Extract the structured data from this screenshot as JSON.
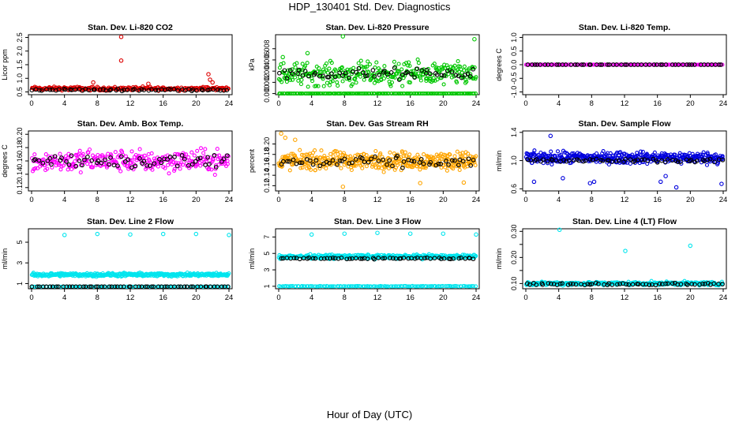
{
  "figure": {
    "title": "HDP_130401  Std. Dev. Diagnostics",
    "xlabel": "Hour of Day (UTC)"
  },
  "chart_data": [
    {
      "type": "scatter",
      "title": "Stan. Dev. Li-820 CO2",
      "ylabel": "Licor ppm",
      "xlim": [
        0,
        24
      ],
      "xticks": [
        0,
        4,
        8,
        12,
        16,
        20,
        24
      ],
      "ylim": [
        0.4,
        2.6
      ],
      "yticks": [
        0.5,
        1.0,
        1.5,
        2.0,
        2.5
      ],
      "yticklabels": [
        "0.5",
        "1.0",
        "1.5",
        "2.0",
        "2.5"
      ],
      "series": [
        {
          "name": "cloud",
          "color": "#dd0000",
          "base": 0.62,
          "spread": 0.1,
          "n": 260,
          "outliers": [
            [
              10.9,
              2.52
            ],
            [
              10.9,
              1.65
            ],
            [
              21.5,
              1.15
            ],
            [
              21.7,
              0.95
            ],
            [
              22.0,
              0.85
            ],
            [
              7.5,
              0.85
            ],
            [
              14.2,
              0.8
            ]
          ]
        },
        {
          "name": "mean",
          "color": "#000000",
          "base": 0.58,
          "spread": 0.05,
          "n": 60
        }
      ]
    },
    {
      "type": "scatter",
      "title": "Stan. Dev. Li-820 Pressure",
      "ylabel": "kPa",
      "xlim": [
        0,
        24
      ],
      "xticks": [
        0,
        4,
        8,
        12,
        16,
        20,
        24
      ],
      "ylim": [
        -0.0002,
        0.0105
      ],
      "yticks": [
        0.0,
        0.002,
        0.004,
        0.006,
        0.008
      ],
      "yticklabels": [
        "0.000",
        "0.002",
        "0.004",
        "0.006",
        "0.008"
      ],
      "series": [
        {
          "name": "cloud",
          "color": "#00c800",
          "base": 0.0035,
          "spread": 0.003,
          "n": 320,
          "outliers": [
            [
              7.8,
              0.0102
            ],
            [
              23.8,
              0.0097
            ],
            [
              0.5,
              0.0065
            ],
            [
              3.5,
              0.0072
            ]
          ]
        },
        {
          "name": "floor",
          "color": "#00c800",
          "base": 0.0,
          "spread": 0.0,
          "n": 140
        },
        {
          "name": "mean",
          "color": "#000000",
          "base": 0.0035,
          "spread": 0.0015,
          "n": 60
        }
      ]
    },
    {
      "type": "scatter",
      "title": "Stan. Dev. Li-820 Temp.",
      "ylabel": "degrees C",
      "xlim": [
        0,
        24
      ],
      "xticks": [
        0,
        4,
        8,
        12,
        16,
        20,
        24
      ],
      "ylim": [
        -1.1,
        1.1
      ],
      "yticks": [
        -1.0,
        -0.5,
        0.0,
        0.5,
        1.0
      ],
      "yticklabels": [
        "-1.0",
        "-0.5",
        "0.0",
        "0.5",
        "1.0"
      ],
      "series": [
        {
          "name": "cloud",
          "color": "#ff00ff",
          "base": 0.0,
          "spread": 0.0,
          "n": 160
        },
        {
          "name": "mean",
          "color": "#000000",
          "base": 0.0,
          "spread": 0.0,
          "n": 55
        }
      ]
    },
    {
      "type": "scatter",
      "title": "Stan. Dev. Amb. Box Temp.",
      "ylabel": "degrees C",
      "xlim": [
        0,
        24
      ],
      "xticks": [
        0,
        4,
        8,
        12,
        16,
        20,
        24
      ],
      "ylim": [
        0.115,
        0.205
      ],
      "yticks": [
        0.12,
        0.14,
        0.16,
        0.18,
        0.2
      ],
      "yticklabels": [
        "0.12",
        "0.14",
        "0.16",
        "0.18",
        "0.20"
      ],
      "series": [
        {
          "name": "cloud",
          "color": "#ff00ff",
          "base": 0.16,
          "spread": 0.024,
          "n": 300
        },
        {
          "name": "mean",
          "color": "#000000",
          "base": 0.16,
          "spread": 0.016,
          "n": 60
        }
      ]
    },
    {
      "type": "scatter",
      "title": "Stan. Dev. Gas Stream RH",
      "ylabel": "percent",
      "xlim": [
        0,
        24
      ],
      "xticks": [
        0,
        4,
        8,
        12,
        16,
        20,
        24
      ],
      "ylim": [
        0.11,
        0.225
      ],
      "yticks": [
        0.12,
        0.14,
        0.16,
        0.18,
        0.2
      ],
      "yticklabels": [
        "0.12",
        "0.14",
        "0.16",
        "0.18",
        "0.20"
      ],
      "series": [
        {
          "name": "cloud",
          "color": "#ffa500",
          "base": 0.168,
          "spread": 0.025,
          "n": 420,
          "outliers": [
            [
              0.3,
              0.22
            ],
            [
              0.8,
              0.212
            ],
            [
              7.8,
              0.118
            ],
            [
              17.2,
              0.125
            ],
            [
              22.5,
              0.126
            ],
            [
              2.0,
              0.208
            ]
          ]
        },
        {
          "name": "mean",
          "color": "#000000",
          "base": 0.165,
          "spread": 0.015,
          "n": 60
        }
      ]
    },
    {
      "type": "scatter",
      "title": "Stan. Dev. Sample Flow",
      "ylabel": "ml/min",
      "xlim": [
        0,
        24
      ],
      "xticks": [
        0,
        4,
        8,
        12,
        16,
        20,
        24
      ],
      "ylim": [
        0.57,
        1.42
      ],
      "yticks": [
        0.6,
        1.0,
        1.4
      ],
      "yticklabels": [
        "0.6",
        "1.0",
        "1.4"
      ],
      "series": [
        {
          "name": "cloud",
          "color": "#0000dd",
          "base": 1.04,
          "spread": 0.12,
          "n": 420,
          "outliers": [
            [
              3.0,
              1.35
            ],
            [
              1.0,
              0.7
            ],
            [
              4.5,
              0.75
            ],
            [
              7.8,
              0.68
            ],
            [
              8.3,
              0.7
            ],
            [
              16.4,
              0.7
            ],
            [
              18.3,
              0.62
            ],
            [
              23.8,
              0.67
            ],
            [
              17.0,
              0.78
            ]
          ]
        },
        {
          "name": "mean",
          "color": "#000000",
          "base": 1.0,
          "spread": 0.04,
          "n": 60
        }
      ]
    },
    {
      "type": "scatter",
      "title": "Stan. Dev. Line 2 Flow",
      "ylabel": "ml/min",
      "xlim": [
        0,
        24
      ],
      "xticks": [
        0,
        4,
        8,
        12,
        16,
        20,
        24
      ],
      "ylim": [
        0.5,
        6.3
      ],
      "yticks": [
        1,
        3,
        5
      ],
      "yticklabels": [
        "1",
        "3",
        "5"
      ],
      "series": [
        {
          "name": "band",
          "color": "#00e5ee",
          "base": 1.85,
          "spread": 0.25,
          "n": 400
        },
        {
          "name": "low",
          "color": "#00e5ee",
          "base": 0.7,
          "spread": 0.0,
          "n": 120
        },
        {
          "name": "mean",
          "color": "#000000",
          "base": 0.7,
          "spread": 0.0,
          "n": 60,
          "outliers": [
            [
              4,
              5.7
            ],
            [
              8,
              5.8
            ],
            [
              12,
              5.75
            ],
            [
              16,
              5.8
            ],
            [
              20,
              5.8
            ],
            [
              24,
              5.7
            ]
          ]
        }
      ]
    },
    {
      "type": "scatter",
      "title": "Stan. Dev. Line 3 Flow",
      "ylabel": "ml/min",
      "xlim": [
        0,
        24
      ],
      "xticks": [
        0,
        4,
        8,
        12,
        16,
        20,
        24
      ],
      "ylim": [
        0.7,
        8.0
      ],
      "yticks": [
        1,
        3,
        5,
        7
      ],
      "yticklabels": [
        "1",
        "3",
        "5",
        "7"
      ],
      "series": [
        {
          "name": "band",
          "color": "#00e5ee",
          "base": 4.6,
          "spread": 0.35,
          "n": 420
        },
        {
          "name": "low",
          "color": "#00e5ee",
          "base": 1.0,
          "spread": 0.05,
          "n": 130
        },
        {
          "name": "mean",
          "color": "#000000",
          "base": 4.4,
          "spread": 0.15,
          "n": 60,
          "outliers": [
            [
              4,
              7.3
            ],
            [
              8,
              7.4
            ],
            [
              12,
              7.5
            ],
            [
              16,
              7.4
            ],
            [
              20,
              7.4
            ],
            [
              24,
              7.3
            ]
          ]
        }
      ]
    },
    {
      "type": "scatter",
      "title": "Stan. Dev. Line 4 (LT) Flow",
      "ylabel": "ml/min",
      "xlim": [
        0,
        24
      ],
      "xticks": [
        0,
        4,
        8,
        12,
        16,
        20,
        24
      ],
      "ylim": [
        0.08,
        0.31
      ],
      "yticks": [
        0.1,
        0.15,
        0.2,
        0.25,
        0.3
      ],
      "yticklabels": [
        "0.10",
        "",
        "0.20",
        "",
        "0.30"
      ],
      "series": [
        {
          "name": "band",
          "color": "#00e5ee",
          "base": 0.1,
          "spread": 0.01,
          "n": 360,
          "outliers": [
            [
              4.1,
              0.306
            ],
            [
              12.1,
              0.225
            ],
            [
              20.0,
              0.245
            ]
          ]
        },
        {
          "name": "mean",
          "color": "#000000",
          "base": 0.098,
          "spread": 0.006,
          "n": 60
        }
      ]
    }
  ]
}
